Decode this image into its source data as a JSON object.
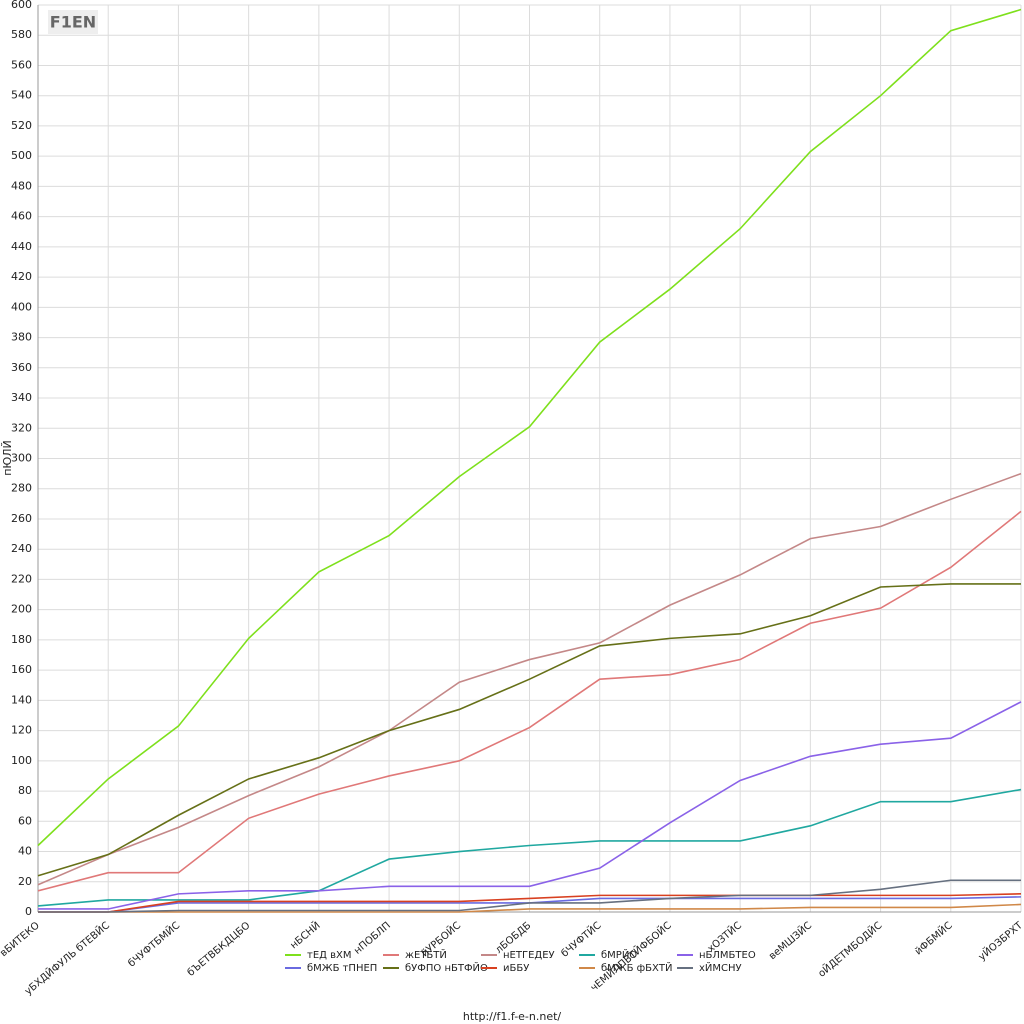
{
  "chart_data": {
    "type": "line",
    "logo": "F1EN",
    "y_label": "пЮЛЙ",
    "footer": "http://f1.f-e-n.net/",
    "categories": [
      "вБИТЕКО",
      "уБХДЙФУЛЬ бТЕВЙС",
      "бЧУФТБМЙС",
      "бЪЕТВБКДЦБО",
      "нБСНЙ",
      "нПОБЛП",
      "йУРБОЙС",
      "лБОБДБ",
      "бЧУФТЙС",
      "чЕМЙЛПВТЙФБОЙС",
      "хОЗТЙС",
      "веМШЗЙС",
      "оЙДЕТМБОДЙС",
      "йФБМЙС",
      "уЙОЗБРХТ"
    ],
    "ylim": [
      0,
      600
    ],
    "yticks": [
      0,
      20,
      40,
      60,
      80,
      100,
      120,
      140,
      160,
      180,
      200,
      220,
      240,
      260,
      280,
      300,
      320,
      340,
      360,
      380,
      400,
      420,
      440,
      460,
      480,
      500,
      520,
      540,
      560,
      580,
      600
    ],
    "grid": true,
    "series": [
      {
        "name": "тЕД вХМ",
        "color": "#7ee01c",
        "values": [
          44,
          88,
          123,
          181,
          225,
          249,
          288,
          321,
          377,
          412,
          452,
          503,
          540,
          583,
          597
        ]
      },
      {
        "name": "жЕТБТЙ",
        "color": "#e07878",
        "values": [
          14,
          26,
          26,
          62,
          78,
          90,
          100,
          122,
          154,
          157,
          167,
          191,
          201,
          228,
          265
        ]
      },
      {
        "name": "нЕТГЕДЕУ",
        "color": "#c48888",
        "values": [
          18,
          38,
          56,
          77,
          96,
          120,
          152,
          167,
          178,
          203,
          223,
          247,
          255,
          273,
          290
        ]
      },
      {
        "name": "бМРЙО",
        "color": "#20a8a0",
        "values": [
          4,
          8,
          8,
          8,
          14,
          35,
          40,
          44,
          47,
          47,
          47,
          57,
          73,
          73,
          81
        ]
      },
      {
        "name": "нБЛМБТЕО",
        "color": "#8a62e8",
        "values": [
          2,
          2,
          12,
          14,
          14,
          17,
          17,
          17,
          29,
          59,
          87,
          103,
          111,
          115,
          139
        ]
      },
      {
        "name": "бМЖБ тПНЕП",
        "color": "#6a6ae0",
        "values": [
          0,
          0,
          6,
          6,
          6,
          6,
          6,
          6,
          9,
          9,
          9,
          9,
          9,
          9,
          10
        ]
      },
      {
        "name": "бУФПО нБТФЙО",
        "color": "#667018",
        "values": [
          24,
          38,
          64,
          88,
          102,
          120,
          134,
          154,
          176,
          181,
          184,
          196,
          215,
          217,
          217
        ]
      },
      {
        "name": "иББУ",
        "color": "#d84020",
        "values": [
          0,
          0,
          7,
          7,
          7,
          7,
          7,
          9,
          11,
          11,
          11,
          11,
          11,
          11,
          12
        ]
      },
      {
        "name": "бМЖБ фБХТЙ",
        "color": "#d08848",
        "values": [
          0,
          0,
          0,
          0,
          0,
          0,
          0,
          2,
          2,
          2,
          2,
          3,
          3,
          3,
          5
        ]
      },
      {
        "name": "хЙМСНУ",
        "color": "#667080",
        "values": [
          0,
          0,
          1,
          1,
          1,
          1,
          1,
          6,
          6,
          9,
          11,
          11,
          15,
          21,
          21
        ]
      }
    ]
  }
}
